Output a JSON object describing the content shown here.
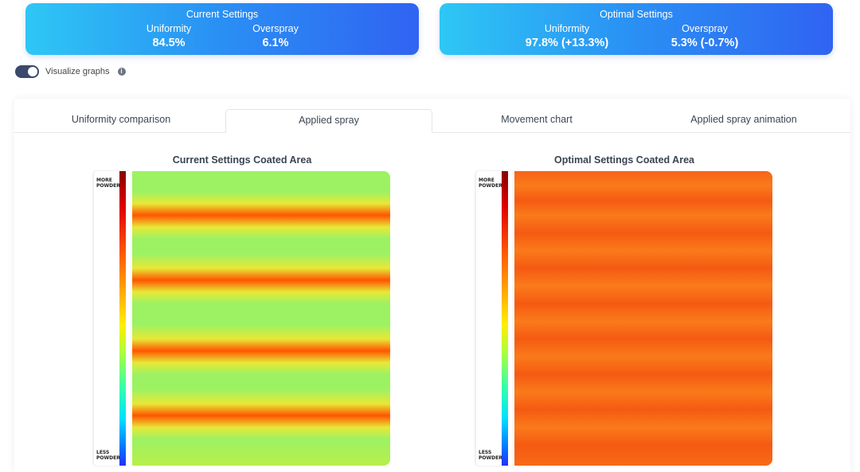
{
  "current_card": {
    "title": "Current Settings",
    "uniformity_label": "Uniformity",
    "uniformity_value": "84.5%",
    "overspray_label": "Overspray",
    "overspray_value": "6.1%"
  },
  "optimal_card": {
    "title": "Optimal Settings",
    "uniformity_label": "Uniformity",
    "uniformity_value": "97.8% (+13.3%)",
    "overspray_label": "Overspray",
    "overspray_value": "5.3% (-0.7%)"
  },
  "toggle": {
    "label": "Visualize graphs",
    "on": true,
    "info_icon": "i"
  },
  "tabs": [
    {
      "label": "Uniformity comparison",
      "active": false
    },
    {
      "label": "Applied spray",
      "active": true
    },
    {
      "label": "Movement chart",
      "active": false
    },
    {
      "label": "Applied spray animation",
      "active": false
    }
  ],
  "charts": {
    "left_title": "Current Settings Coated Area",
    "right_title": "Optimal Settings Coated Area",
    "legend_top": "MORE POWDER",
    "legend_bottom": "LESS POWDER"
  },
  "chart_data": [
    {
      "type": "heatmap",
      "title": "Current Settings Coated Area",
      "colorbar": {
        "top": "MORE POWDER",
        "bottom": "LESS POWDER"
      },
      "bands": {
        "count": 4,
        "peak_color": "#ff5500",
        "trough_color": "#9cf263"
      }
    },
    {
      "type": "heatmap",
      "title": "Optimal Settings Coated Area",
      "colorbar": {
        "top": "MORE POWDER",
        "bottom": "LESS POWDER"
      },
      "bands": {
        "count": 9,
        "peak_color": "#f55a12",
        "trough_color": "#fa7a1a"
      }
    }
  ]
}
